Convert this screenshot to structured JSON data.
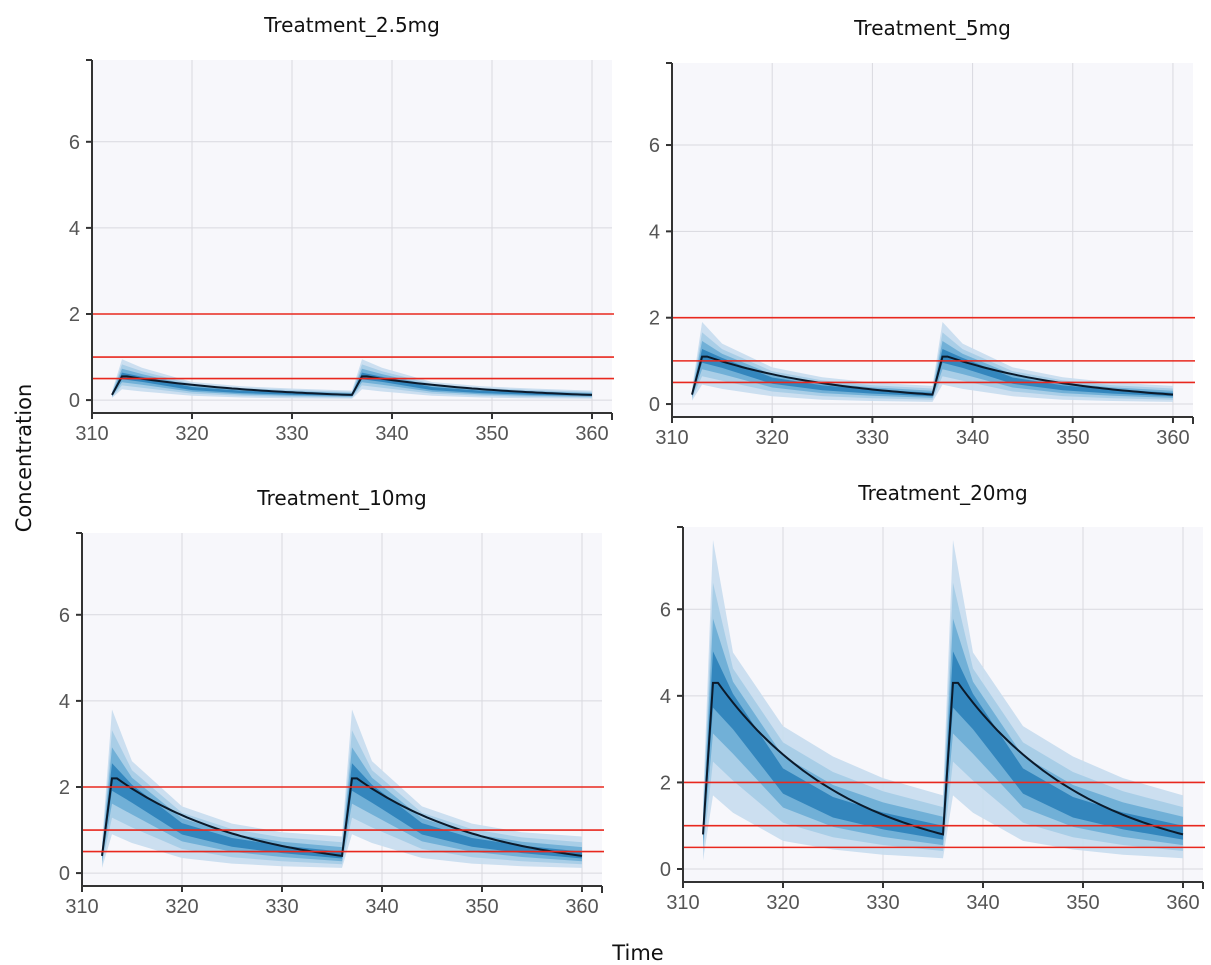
{
  "chart_data": [
    {
      "type": "area",
      "title": "Treatment_2.5mg",
      "xlim": [
        310,
        362
      ],
      "ylim": [
        -0.3,
        7.9
      ],
      "xticks": [
        310,
        320,
        330,
        340,
        350,
        360
      ],
      "yticks": [
        0,
        2,
        4,
        6
      ],
      "grid": true,
      "dose_times": [
        312,
        336
      ],
      "end_time": 360,
      "median_peak": 0.55,
      "median_trough": 0.12,
      "reference_lines": [
        0.5,
        1,
        2
      ],
      "series": [
        {
          "band": "90%",
          "x": [
            312,
            313,
            315,
            320,
            325,
            330,
            336,
            337,
            339,
            344,
            349,
            354,
            360
          ],
          "upper": [
            0.2,
            0.95,
            0.75,
            0.42,
            0.32,
            0.27,
            0.22,
            0.95,
            0.75,
            0.42,
            0.32,
            0.27,
            0.22
          ],
          "lower": [
            0.05,
            0.25,
            0.2,
            0.1,
            0.06,
            0.04,
            0.03,
            0.25,
            0.2,
            0.1,
            0.06,
            0.04,
            0.03
          ]
        },
        {
          "name": "median",
          "x": [
            312,
            313,
            314,
            316,
            320,
            325,
            330,
            336,
            337,
            338,
            340,
            344,
            349,
            354,
            360
          ],
          "values": [
            0.12,
            0.55,
            0.55,
            0.42,
            0.27,
            0.19,
            0.15,
            0.12,
            0.55,
            0.55,
            0.42,
            0.27,
            0.19,
            0.15,
            0.12
          ]
        }
      ]
    },
    {
      "type": "area",
      "title": "Treatment_5mg",
      "xlim": [
        310,
        362
      ],
      "ylim": [
        -0.3,
        7.9
      ],
      "xticks": [
        310,
        320,
        330,
        340,
        350,
        360
      ],
      "yticks": [
        0,
        2,
        4,
        6
      ],
      "grid": true,
      "dose_times": [
        312,
        336
      ],
      "end_time": 360,
      "median_peak": 1.1,
      "median_trough": 0.22,
      "reference_lines": [
        0.5,
        1,
        2
      ],
      "series": [
        {
          "band": "90%",
          "x": [
            312,
            313,
            315,
            320,
            325,
            330,
            336,
            337,
            339,
            344,
            349,
            354,
            360
          ],
          "upper": [
            0.35,
            1.9,
            1.4,
            0.85,
            0.62,
            0.5,
            0.42,
            1.9,
            1.4,
            0.85,
            0.62,
            0.5,
            0.42
          ],
          "lower": [
            0.08,
            0.45,
            0.35,
            0.18,
            0.1,
            0.07,
            0.05,
            0.45,
            0.35,
            0.18,
            0.1,
            0.07,
            0.05
          ]
        },
        {
          "name": "median",
          "x": [
            312,
            313,
            314,
            316,
            320,
            325,
            330,
            336,
            337,
            338,
            340,
            344,
            349,
            354,
            360
          ],
          "values": [
            0.22,
            1.1,
            1.1,
            0.85,
            0.55,
            0.38,
            0.29,
            0.22,
            1.1,
            1.1,
            0.85,
            0.55,
            0.38,
            0.29,
            0.22
          ]
        }
      ]
    },
    {
      "type": "area",
      "title": "Treatment_10mg",
      "xlim": [
        310,
        362
      ],
      "ylim": [
        -0.3,
        7.9
      ],
      "xticks": [
        310,
        320,
        330,
        340,
        350,
        360
      ],
      "yticks": [
        0,
        2,
        4,
        6
      ],
      "grid": true,
      "dose_times": [
        312,
        336
      ],
      "end_time": 360,
      "median_peak": 2.2,
      "median_trough": 0.4,
      "reference_lines": [
        0.5,
        1,
        2
      ],
      "series": [
        {
          "band": "90%",
          "x": [
            312,
            313,
            315,
            320,
            325,
            330,
            336,
            337,
            339,
            344,
            349,
            354,
            360
          ],
          "upper": [
            0.7,
            3.8,
            2.6,
            1.55,
            1.15,
            0.95,
            0.85,
            3.8,
            2.6,
            1.55,
            1.15,
            0.95,
            0.85
          ],
          "lower": [
            0.12,
            0.9,
            0.7,
            0.35,
            0.22,
            0.16,
            0.12,
            0.9,
            0.7,
            0.35,
            0.22,
            0.16,
            0.12
          ]
        },
        {
          "name": "median",
          "x": [
            312,
            313,
            314,
            316,
            320,
            325,
            330,
            336,
            337,
            338,
            340,
            344,
            349,
            354,
            360
          ],
          "values": [
            0.4,
            2.2,
            2.15,
            1.65,
            1.05,
            0.72,
            0.55,
            0.4,
            2.2,
            2.15,
            1.65,
            1.05,
            0.72,
            0.55,
            0.4
          ]
        }
      ]
    },
    {
      "type": "area",
      "title": "Treatment_20mg",
      "xlim": [
        310,
        362
      ],
      "ylim": [
        -0.3,
        7.9
      ],
      "xticks": [
        310,
        320,
        330,
        340,
        350,
        360
      ],
      "yticks": [
        0,
        2,
        4,
        6
      ],
      "grid": true,
      "dose_times": [
        312,
        336
      ],
      "end_time": 360,
      "median_peak": 4.3,
      "median_trough": 0.8,
      "reference_lines": [
        0.5,
        1,
        2
      ],
      "series": [
        {
          "band": "90%",
          "x": [
            312,
            313,
            315,
            320,
            325,
            330,
            336,
            337,
            339,
            344,
            349,
            354,
            360
          ],
          "upper": [
            1.5,
            7.6,
            5.0,
            3.3,
            2.6,
            2.1,
            1.7,
            7.6,
            5.0,
            3.3,
            2.6,
            2.1,
            1.7
          ],
          "lower": [
            0.2,
            1.7,
            1.3,
            0.65,
            0.45,
            0.33,
            0.25,
            1.7,
            1.3,
            0.65,
            0.45,
            0.33,
            0.25
          ]
        },
        {
          "name": "median",
          "x": [
            312,
            313,
            314,
            316,
            320,
            325,
            330,
            336,
            337,
            338,
            340,
            344,
            349,
            354,
            360
          ],
          "values": [
            0.8,
            4.3,
            4.25,
            3.3,
            2.05,
            1.4,
            1.08,
            0.8,
            4.3,
            4.25,
            3.3,
            2.05,
            1.4,
            1.08,
            0.8
          ]
        }
      ]
    }
  ],
  "ylabel": "Concentration",
  "xlabel": "Time",
  "colors": {
    "band_outer": "#c6dcee",
    "band_2": "#9ec8e4",
    "band_3": "#5fa6d2",
    "band_inner": "#1f78b4",
    "median": "#0b1a2b",
    "reference": "#e8281e",
    "grid": "#d9d9df",
    "plot_bg": "#f7f7fb",
    "axis": "#333333"
  }
}
